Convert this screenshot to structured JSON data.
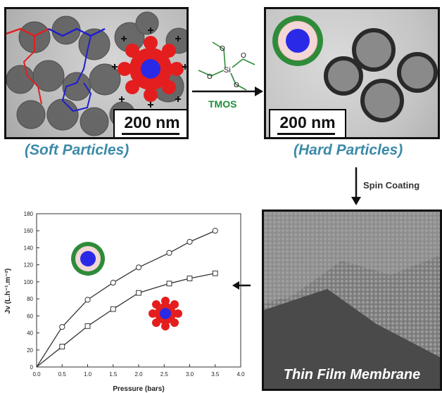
{
  "panels": {
    "soft": {
      "scale": "200 nm",
      "caption": "(Soft Particles)"
    },
    "hard": {
      "scale": "200 nm",
      "caption": "(Hard Particles)"
    },
    "film": {
      "label": "Thin Film Membrane"
    }
  },
  "arrows": {
    "reagent": "TMOS",
    "silane_atoms": {
      "si": "Si",
      "o": "O"
    },
    "process": "Spin Coating"
  },
  "colors": {
    "polymer_red": "#e02020",
    "polymer_blue": "#1f1fd0",
    "silica_green": "#2e8b3a",
    "core_blue": "#3030e0"
  },
  "chart_data": {
    "type": "line",
    "title": "",
    "xlabel": "Pressure (bars)",
    "ylabel": "Jv (L.h⁻¹.m⁻²)",
    "xlim": [
      0.0,
      4.0
    ],
    "ylim": [
      0,
      180
    ],
    "xticks": [
      "0.0",
      "0.5",
      "1.0",
      "1.5",
      "2.0",
      "2.5",
      "3.0",
      "3.5",
      "4.0"
    ],
    "yticks": [
      "0",
      "20",
      "40",
      "60",
      "80",
      "100",
      "120",
      "140",
      "160",
      "180"
    ],
    "grid": false,
    "series": [
      {
        "marker": "circle",
        "particle": "hard-particle-icon",
        "x": [
          0,
          0.5,
          1.0,
          1.5,
          2.0,
          2.6,
          3.0,
          3.5
        ],
        "y": [
          0,
          47,
          79,
          99,
          117,
          134,
          147,
          160
        ]
      },
      {
        "marker": "square",
        "particle": "soft-particle-icon",
        "x": [
          0,
          0.5,
          1.0,
          1.5,
          2.0,
          2.6,
          3.0,
          3.5
        ],
        "y": [
          0,
          24,
          48,
          68,
          87,
          98,
          104,
          110
        ]
      }
    ]
  }
}
